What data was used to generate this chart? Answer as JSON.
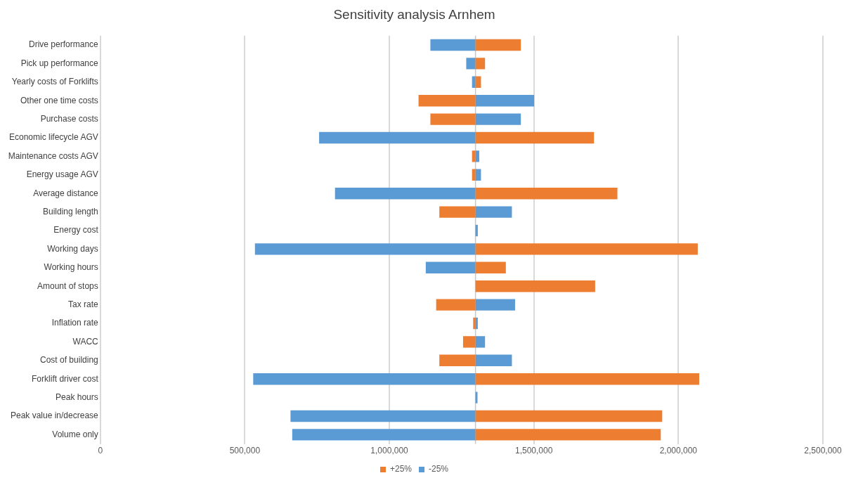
{
  "chart_data": {
    "type": "bar",
    "orientation": "horizontal",
    "title": "Sensitivity analysis Arnhem",
    "categories": [
      "Drive performance",
      "Pick up performance",
      "Yearly costs of Forklifts",
      "Other one time costs",
      "Purchase costs",
      "Economic lifecycle AGV",
      "Maintenance costs AGV",
      "Energy usage AGV",
      "Average distance",
      "Building length",
      "Energy cost",
      "Working days",
      "Working hours",
      "Amount of stops",
      "Tax rate",
      "Inflation rate",
      "WACC",
      "Cost of building",
      "Forklift driver cost",
      "Peak hours",
      "Peak value in/decrease",
      "Volume only"
    ],
    "series": [
      {
        "name": "+25%",
        "color": "#ed7d31",
        "base": [
          1298000,
          1298000,
          1298000,
          1298000,
          1298000,
          1298000,
          1298000,
          1298000,
          1298000,
          1298000,
          null,
          1298000,
          1298000,
          1298000,
          1298000,
          1298000,
          1298000,
          1298000,
          1298000,
          null,
          1298000,
          1298000
        ],
        "values": [
          157000,
          33000,
          19000,
          -197000,
          -156000,
          410000,
          -12000,
          -12000,
          491000,
          -125000,
          null,
          769000,
          105000,
          414000,
          -136000,
          -8000,
          -43000,
          -125000,
          774000,
          null,
          646000,
          641000
        ]
      },
      {
        "name": "-25%",
        "color": "#5b9bd5",
        "base": [
          1298000,
          1298000,
          1298000,
          1298000,
          1298000,
          1298000,
          1298000,
          1298000,
          1298000,
          1298000,
          1298000,
          1298000,
          1298000,
          null,
          1298000,
          1298000,
          1298000,
          1298000,
          1298000,
          1298000,
          1298000,
          1298000
        ],
        "values": [
          -156000,
          -32000,
          -12000,
          203000,
          157000,
          -541000,
          13000,
          19000,
          -486000,
          126000,
          8000,
          -763000,
          -172000,
          null,
          137000,
          8000,
          33000,
          126000,
          -769000,
          7000,
          -640000,
          -634000
        ]
      }
    ],
    "xlim": [
      0,
      2500000
    ],
    "xticks": [
      0,
      {
        "value": 500000,
        "label": "500,000"
      },
      {
        "value": 1000000,
        "label": "1,000,000"
      },
      {
        "value": 1500000,
        "label": "1,500,000"
      },
      {
        "value": 2000000,
        "label": "2,000,000"
      },
      {
        "value": 2500000,
        "label": "2,500,000"
      }
    ],
    "ref_lines": [
      {
        "axis": "x",
        "value": 1298000,
        "color": "#c8c8c8"
      }
    ],
    "grid": "x",
    "legend": "bottom"
  }
}
